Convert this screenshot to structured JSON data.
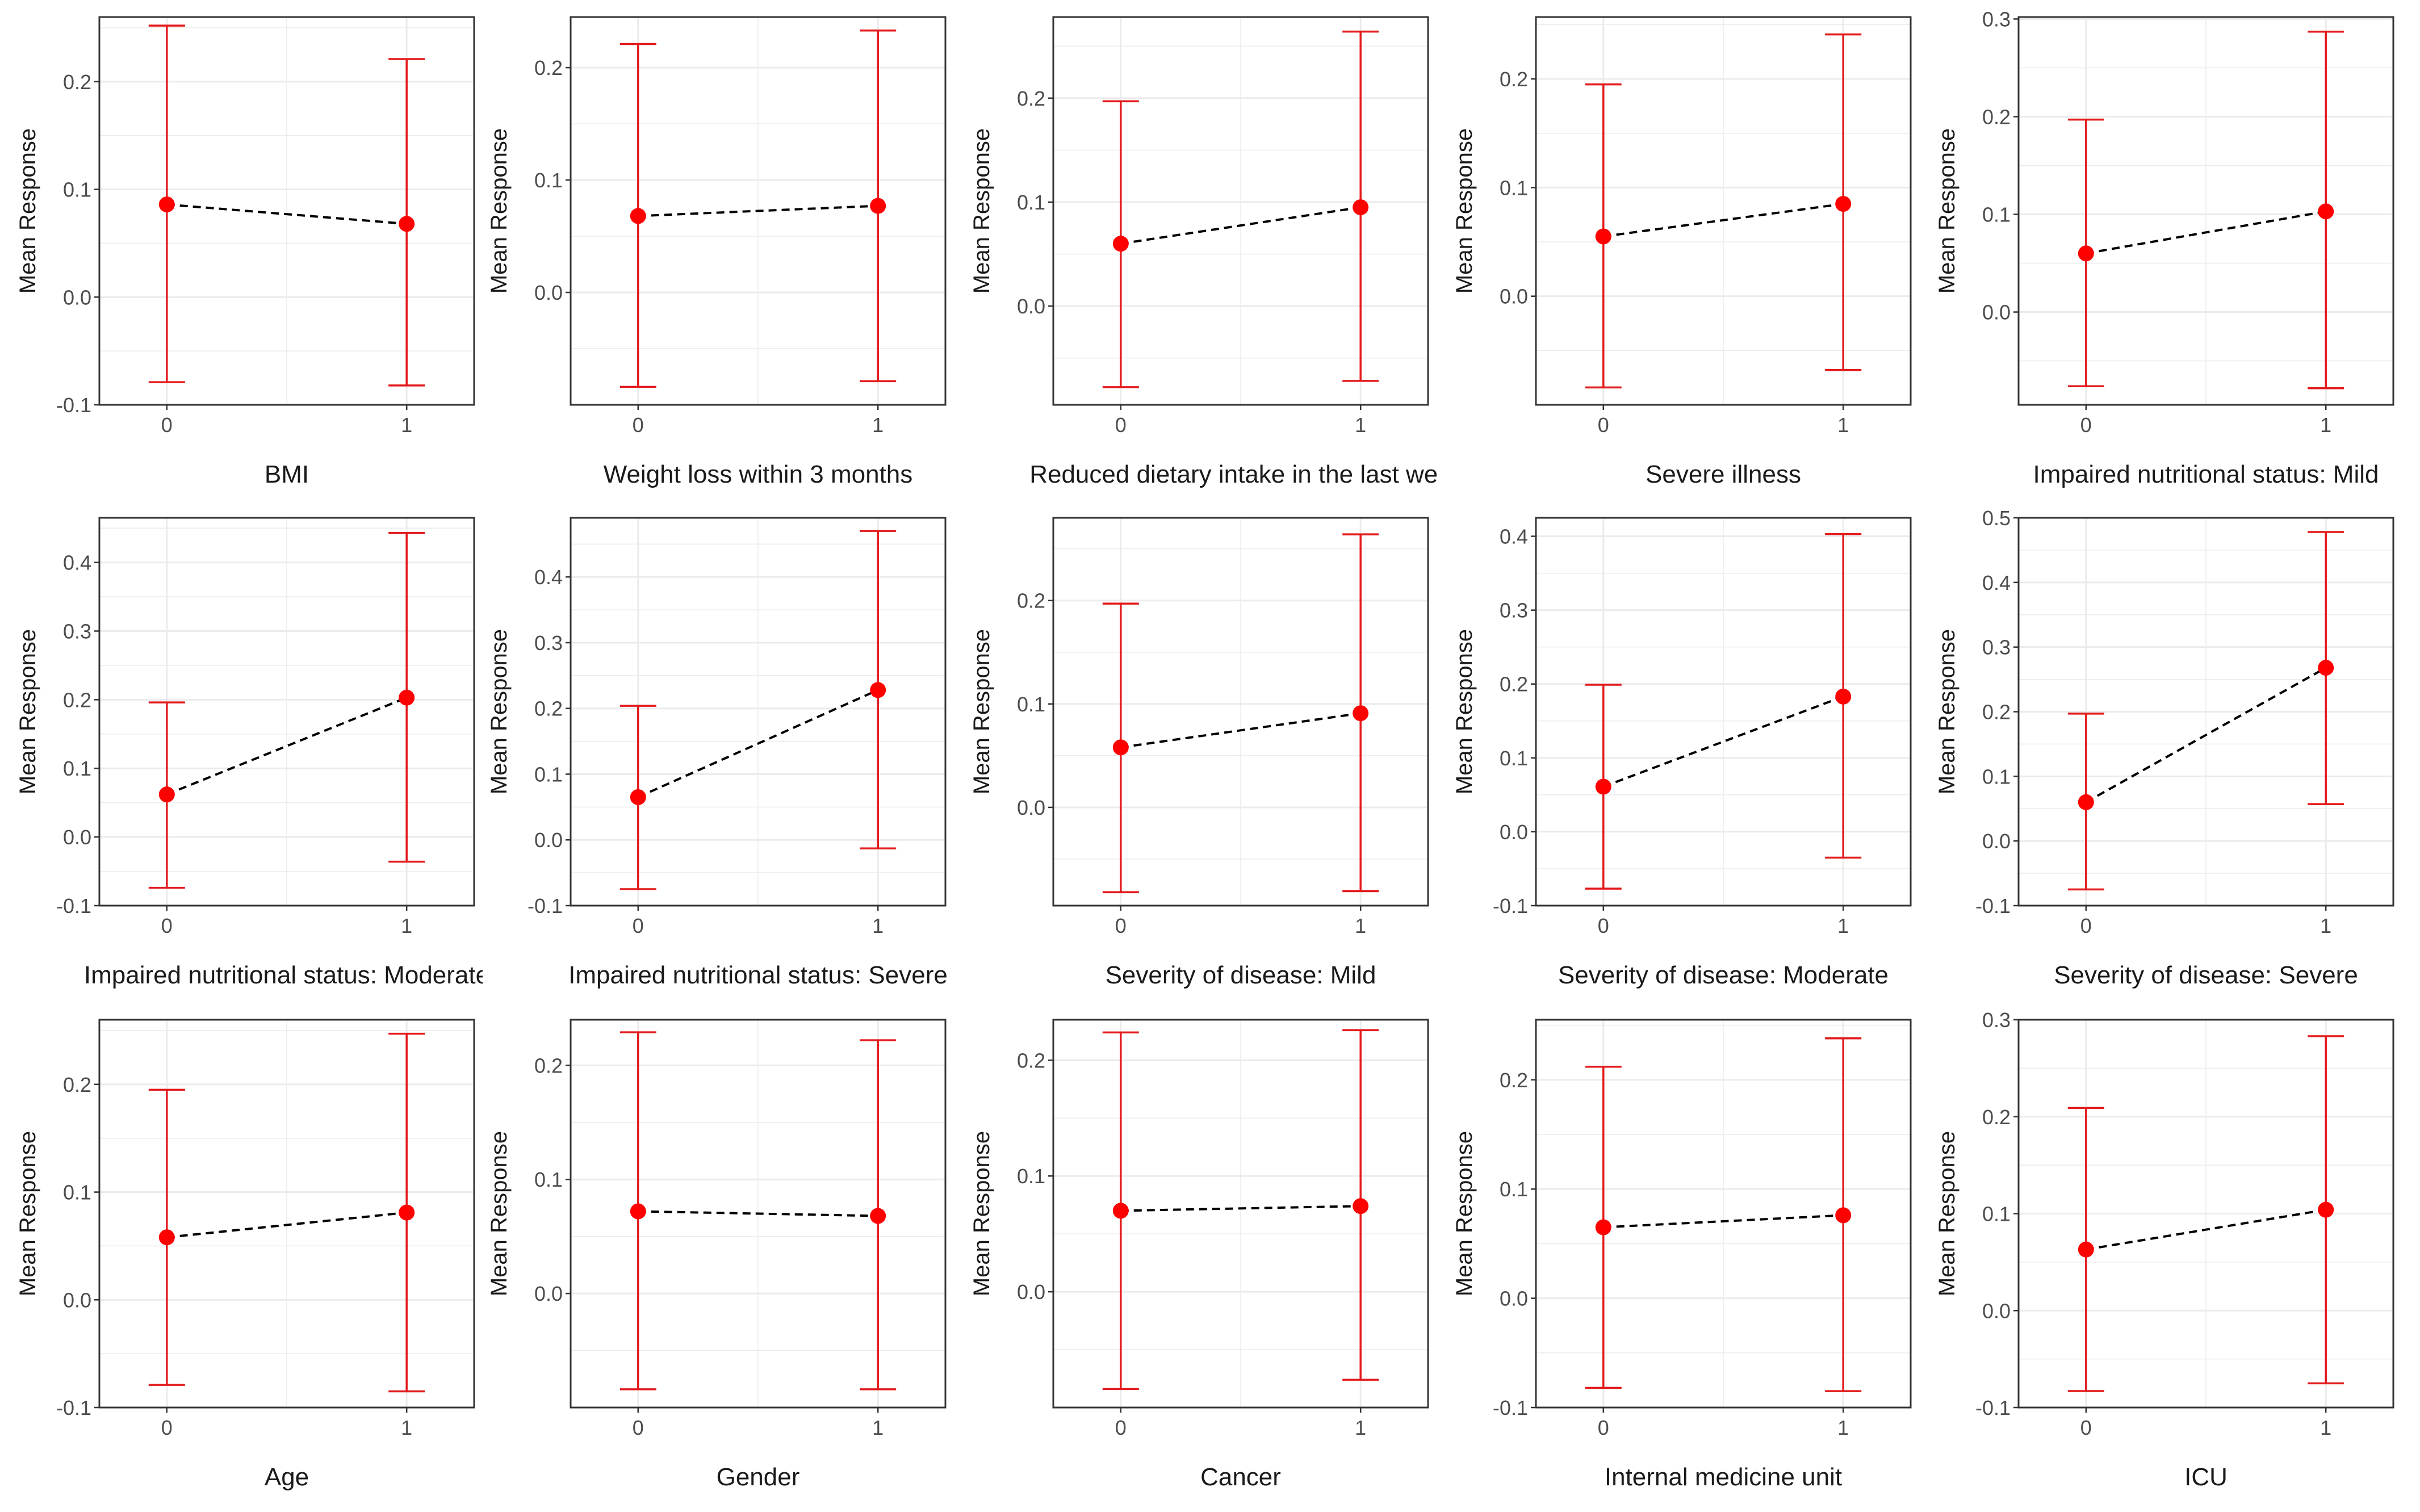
{
  "style": {
    "point_color": "#ff0000",
    "errorbar_color": "#e31a1c",
    "line_color": "#000000",
    "grid_color": "#ebebeb",
    "panel_border_color": "#333333"
  },
  "chart_data": [
    {
      "type": "scatter",
      "xlabel": "BMI",
      "ylabel": "Mean Response",
      "categories": [
        "0",
        "1"
      ],
      "y_ticks": [
        "0.2",
        "0.1",
        "0.0",
        "-0.1"
      ],
      "ylim": [
        -0.1,
        0.26
      ],
      "means": [
        0.086,
        0.068
      ],
      "lower": [
        -0.079,
        -0.082
      ],
      "upper": [
        0.252,
        0.221
      ]
    },
    {
      "type": "scatter",
      "xlabel": "Weight loss within 3 months",
      "ylabel": "Mean Response",
      "categories": [
        "0",
        "1"
      ],
      "y_ticks": [
        "0.2",
        "0.1",
        "0.0"
      ],
      "ylim": [
        -0.1,
        0.245
      ],
      "means": [
        0.068,
        0.077
      ],
      "lower": [
        -0.084,
        -0.079
      ],
      "upper": [
        0.221,
        0.233
      ]
    },
    {
      "type": "scatter",
      "xlabel": "Reduced dietary intake in the last wee",
      "ylabel": "Mean Response",
      "categories": [
        "0",
        "1"
      ],
      "y_ticks": [
        "0.2",
        "0.1",
        "0.0"
      ],
      "ylim": [
        -0.095,
        0.278
      ],
      "means": [
        0.06,
        0.095
      ],
      "lower": [
        -0.078,
        -0.072
      ],
      "upper": [
        0.197,
        0.264
      ]
    },
    {
      "type": "scatter",
      "xlabel": "Severe illness",
      "ylabel": "Mean Response",
      "categories": [
        "0",
        "1"
      ],
      "y_ticks": [
        "0.2",
        "0.1",
        "0.0"
      ],
      "ylim": [
        -0.1,
        0.257
      ],
      "means": [
        0.055,
        0.085
      ],
      "lower": [
        -0.084,
        -0.068
      ],
      "upper": [
        0.195,
        0.241
      ]
    },
    {
      "type": "scatter",
      "xlabel": "Impaired nutritional status: Mild",
      "ylabel": "Mean Response",
      "categories": [
        "0",
        "1"
      ],
      "y_ticks": [
        "0.3",
        "0.2",
        "0.1",
        "0.0"
      ],
      "ylim": [
        -0.095,
        0.302
      ],
      "means": [
        0.06,
        0.103
      ],
      "lower": [
        -0.076,
        -0.078
      ],
      "upper": [
        0.197,
        0.287
      ]
    },
    {
      "type": "scatter",
      "xlabel": "Impaired nutritional status: Moderate",
      "ylabel": "Mean Response",
      "categories": [
        "0",
        "1"
      ],
      "y_ticks": [
        "0.4",
        "0.3",
        "0.2",
        "0.1",
        "0.0",
        "-0.1"
      ],
      "ylim": [
        -0.1,
        0.465
      ],
      "means": [
        0.062,
        0.203
      ],
      "lower": [
        -0.074,
        -0.036
      ],
      "upper": [
        0.196,
        0.443
      ]
    },
    {
      "type": "scatter",
      "xlabel": "Impaired nutritional status: Severe",
      "ylabel": "Mean Response",
      "categories": [
        "0",
        "1"
      ],
      "y_ticks": [
        "0.4",
        "0.3",
        "0.2",
        "0.1",
        "0.0",
        "-0.1"
      ],
      "ylim": [
        -0.1,
        0.49
      ],
      "means": [
        0.065,
        0.228
      ],
      "lower": [
        -0.075,
        -0.013
      ],
      "upper": [
        0.204,
        0.47
      ]
    },
    {
      "type": "scatter",
      "xlabel": "Severity of disease: Mild",
      "ylabel": "Mean Response",
      "categories": [
        "0",
        "1"
      ],
      "y_ticks": [
        "0.2",
        "0.1",
        "0.0"
      ],
      "ylim": [
        -0.095,
        0.28
      ],
      "means": [
        0.058,
        0.091
      ],
      "lower": [
        -0.082,
        -0.081
      ],
      "upper": [
        0.197,
        0.264
      ]
    },
    {
      "type": "scatter",
      "xlabel": "Severity of disease: Moderate",
      "ylabel": "Mean Response",
      "categories": [
        "0",
        "1"
      ],
      "y_ticks": [
        "0.4",
        "0.3",
        "0.2",
        "0.1",
        "0.0",
        "-0.1"
      ],
      "ylim": [
        -0.1,
        0.425
      ],
      "means": [
        0.061,
        0.183
      ],
      "lower": [
        -0.077,
        -0.035
      ],
      "upper": [
        0.199,
        0.403
      ]
    },
    {
      "type": "scatter",
      "xlabel": "Severity of disease: Severe",
      "ylabel": "Mean Response",
      "categories": [
        "0",
        "1"
      ],
      "y_ticks": [
        "0.5",
        "0.4",
        "0.3",
        "0.2",
        "0.1",
        "0.0",
        "-0.1"
      ],
      "ylim": [
        -0.1,
        0.5
      ],
      "means": [
        0.06,
        0.268
      ],
      "lower": [
        -0.075,
        0.057
      ],
      "upper": [
        0.197,
        0.478
      ]
    },
    {
      "type": "scatter",
      "xlabel": "Age",
      "ylabel": "Mean Response",
      "categories": [
        "0",
        "1"
      ],
      "y_ticks": [
        "0.2",
        "0.1",
        "0.0",
        "-0.1"
      ],
      "ylim": [
        -0.1,
        0.26
      ],
      "means": [
        0.058,
        0.081
      ],
      "lower": [
        -0.079,
        -0.085
      ],
      "upper": [
        0.195,
        0.247
      ]
    },
    {
      "type": "scatter",
      "xlabel": "Gender",
      "ylabel": "Mean Response",
      "categories": [
        "0",
        "1"
      ],
      "y_ticks": [
        "0.2",
        "0.1",
        "0.0"
      ],
      "ylim": [
        -0.1,
        0.24
      ],
      "means": [
        0.072,
        0.068
      ],
      "lower": [
        -0.084,
        -0.084
      ],
      "upper": [
        0.229,
        0.222
      ]
    },
    {
      "type": "scatter",
      "xlabel": "Cancer",
      "ylabel": "Mean Response",
      "categories": [
        "0",
        "1"
      ],
      "y_ticks": [
        "0.2",
        "0.1",
        "0.0"
      ],
      "ylim": [
        -0.1,
        0.235
      ],
      "means": [
        0.07,
        0.074
      ],
      "lower": [
        -0.084,
        -0.076
      ],
      "upper": [
        0.224,
        0.226
      ]
    },
    {
      "type": "scatter",
      "xlabel": "Internal medicine unit",
      "ylabel": "Mean Response",
      "categories": [
        "0",
        "1"
      ],
      "y_ticks": [
        "0.2",
        "0.1",
        "0.0",
        "-0.1"
      ],
      "ylim": [
        -0.1,
        0.255
      ],
      "means": [
        0.065,
        0.076
      ],
      "lower": [
        -0.082,
        -0.085
      ],
      "upper": [
        0.212,
        0.238
      ]
    },
    {
      "type": "scatter",
      "xlabel": "ICU",
      "ylabel": "Mean Response",
      "categories": [
        "0",
        "1"
      ],
      "y_ticks": [
        "0.3",
        "0.2",
        "0.1",
        "0.0",
        "-0.1"
      ],
      "ylim": [
        -0.1,
        0.3
      ],
      "means": [
        0.063,
        0.104
      ],
      "lower": [
        -0.083,
        -0.075
      ],
      "upper": [
        0.209,
        0.283
      ]
    }
  ]
}
